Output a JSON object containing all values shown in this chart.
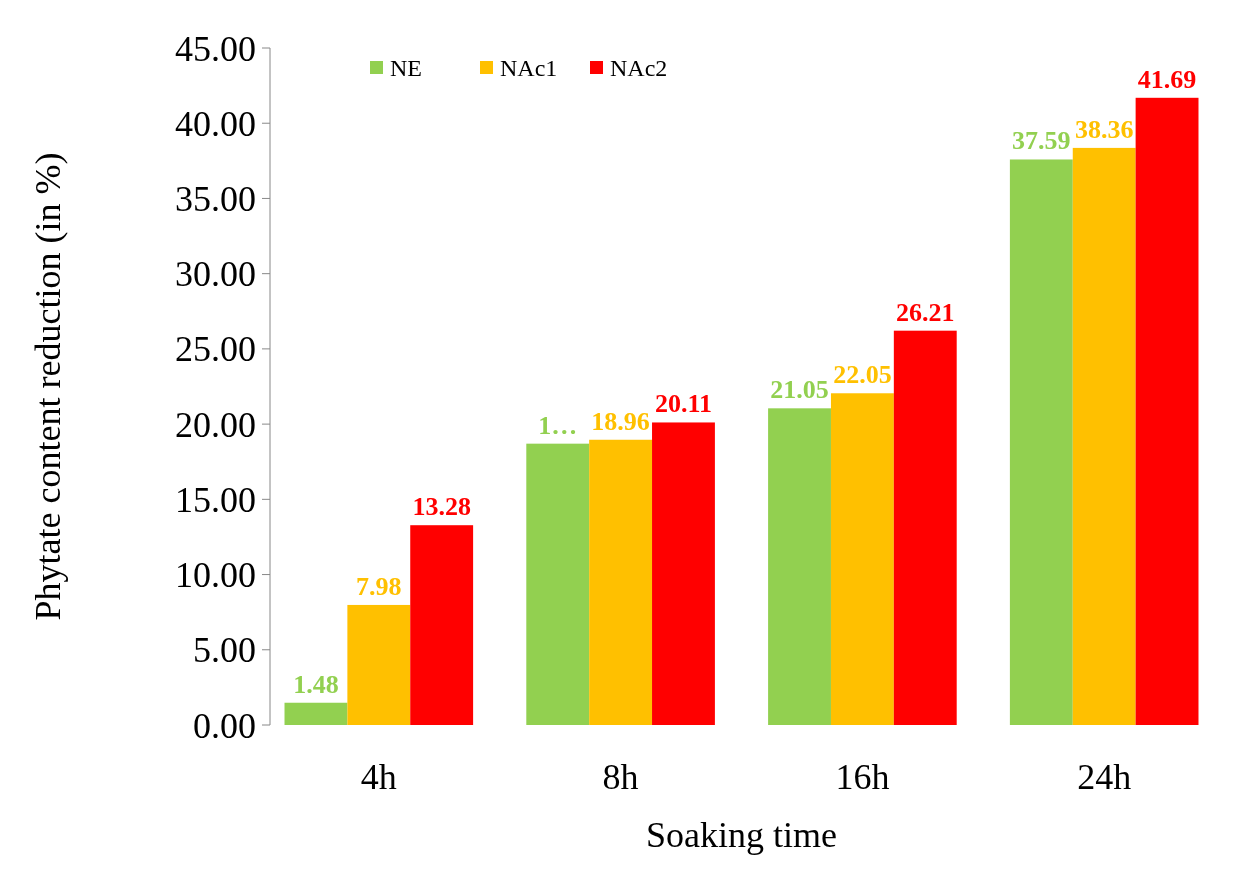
{
  "chart_data": {
    "type": "bar",
    "xlabel": "Soaking time",
    "ylabel": "Phytate content reduction (in %)",
    "categories": [
      "4h",
      "8h",
      "16h",
      "24h"
    ],
    "series": [
      {
        "name": "NE",
        "color": "#92d050",
        "values": [
          1.48,
          18.7,
          21.05,
          37.59
        ],
        "value_labels": [
          "1.48",
          "1…",
          "21.05",
          "37.59"
        ]
      },
      {
        "name": "NAc1",
        "color": "#ffc000",
        "values": [
          7.98,
          18.96,
          22.05,
          38.36
        ],
        "value_labels": [
          "7.98",
          "18.96",
          "22.05",
          "38.36"
        ]
      },
      {
        "name": "NAc2",
        "color": "#ff0000",
        "values": [
          13.28,
          20.11,
          26.21,
          41.69
        ],
        "value_labels": [
          "13.28",
          "20.11",
          "26.21",
          "41.69"
        ]
      }
    ],
    "ylim": [
      0,
      45
    ],
    "yticks": [
      {
        "value": 0,
        "label": "0.00"
      },
      {
        "value": 5,
        "label": "5.00"
      },
      {
        "value": 10,
        "label": "10.00"
      },
      {
        "value": 15,
        "label": "15.00"
      },
      {
        "value": 20,
        "label": "20.00"
      },
      {
        "value": 25,
        "label": "25.00"
      },
      {
        "value": 30,
        "label": "30.00"
      },
      {
        "value": 35,
        "label": "35.00"
      },
      {
        "value": 40,
        "label": "40.00"
      },
      {
        "value": 45,
        "label": "45.00"
      }
    ],
    "grid": false,
    "legend": "top left"
  }
}
